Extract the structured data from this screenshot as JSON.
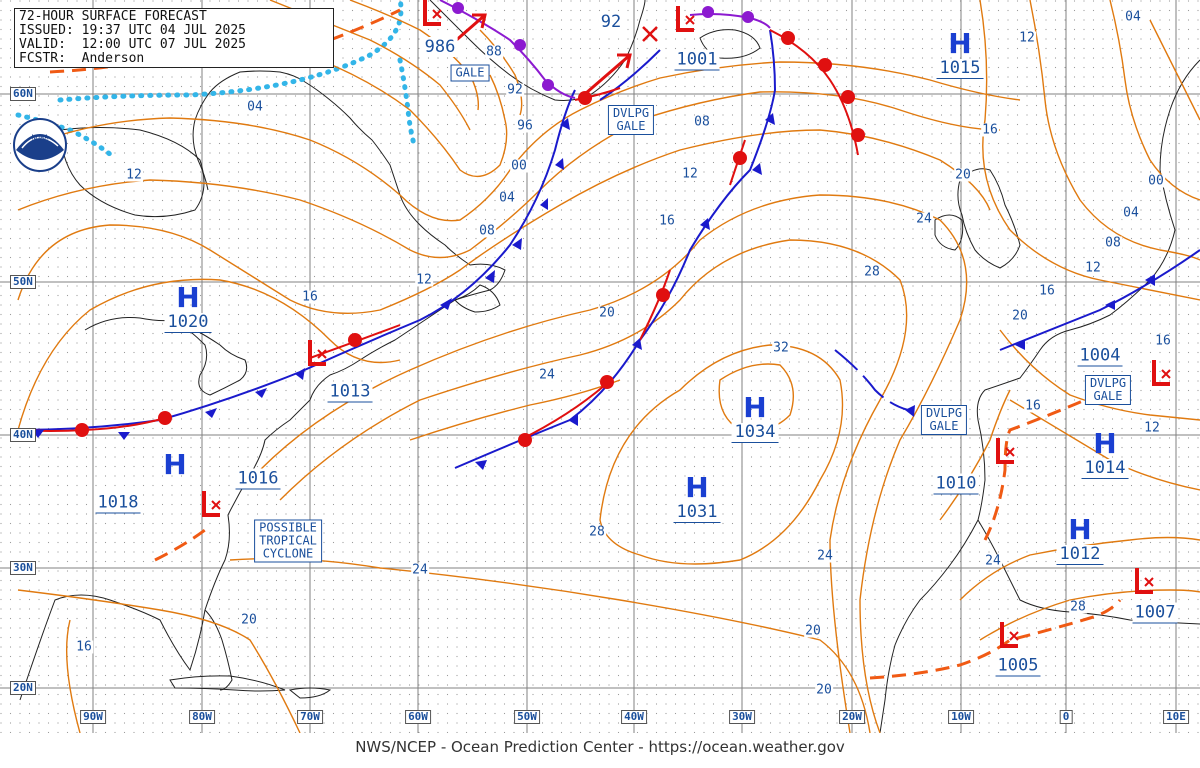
{
  "header": {
    "title": "72-HOUR SURFACE FORECAST",
    "issued": "ISSUED: 19:37 UTC 04 JUL 2025",
    "valid": "VALID:  12:00 UTC 07 JUL 2025",
    "forecaster": "FCSTR:  Anderson"
  },
  "logo": {
    "text": "NOAA",
    "icon": "noaa-logo-icon"
  },
  "footer": {
    "credit": "NWS/NCEP - Ocean Prediction Center - https://ocean.weather.gov"
  },
  "latitudes": [
    "60N",
    "50N",
    "40N",
    "30N",
    "20N"
  ],
  "longitudes": [
    "90W",
    "80W",
    "70W",
    "60W",
    "50W",
    "40W",
    "30W",
    "20W",
    "10W",
    "0",
    "10E"
  ],
  "highs": [
    {
      "id": "h1020",
      "letter": "H",
      "pressure": "1020"
    },
    {
      "id": "h1018",
      "letter": "H",
      "pressure": "1018"
    },
    {
      "id": "h1034",
      "letter": "H",
      "pressure": "1034"
    },
    {
      "id": "h1031",
      "letter": "H",
      "pressure": "1031"
    },
    {
      "id": "h1015",
      "letter": "H",
      "pressure": "1015"
    },
    {
      "id": "h1014",
      "letter": "H",
      "pressure": "1014"
    },
    {
      "id": "h1012",
      "letter": "H",
      "pressure": "1012"
    }
  ],
  "lows": [
    {
      "id": "l986",
      "pressure": "986"
    },
    {
      "id": "l92",
      "pressure": "92"
    },
    {
      "id": "l1001",
      "pressure": "1001"
    },
    {
      "id": "l1013",
      "pressure": "1013"
    },
    {
      "id": "l1016",
      "pressure": "1016"
    },
    {
      "id": "l1004",
      "pressure": "1004"
    },
    {
      "id": "l1010",
      "pressure": "1010"
    },
    {
      "id": "l1007",
      "pressure": "1007"
    },
    {
      "id": "l1005",
      "pressure": "1005"
    }
  ],
  "warnings": {
    "gale": "GALE",
    "dvlpg_gale_1": "DVLPG\nGALE",
    "dvlpg_gale_2": "DVLPG\nGALE",
    "dvlpg_gale_3": "DVLPG\nGALE",
    "tropical": "POSSIBLE\nTROPICAL\nCYCLONE"
  },
  "isobar_labels": [
    "88",
    "92",
    "96",
    "00",
    "04",
    "08",
    "12",
    "16",
    "20",
    "24",
    "28",
    "32",
    "04",
    "12",
    "16",
    "20",
    "24",
    "28",
    "08",
    "12",
    "16",
    "20",
    "24",
    "04",
    "12",
    "16",
    "20",
    "00",
    "04",
    "08",
    "12",
    "16",
    "20",
    "24",
    "16",
    "20",
    "24",
    "28",
    "12",
    "16",
    "08",
    "12",
    "16",
    "20"
  ],
  "colors": {
    "isobar": "#e07a10",
    "cold_front": "#1a1acc",
    "warm_front": "#e01010",
    "occluded": "#8c1ad0",
    "trough": "#f05a14",
    "ice": "#33b5e8",
    "coast": "#222222",
    "grid": "#808080"
  }
}
